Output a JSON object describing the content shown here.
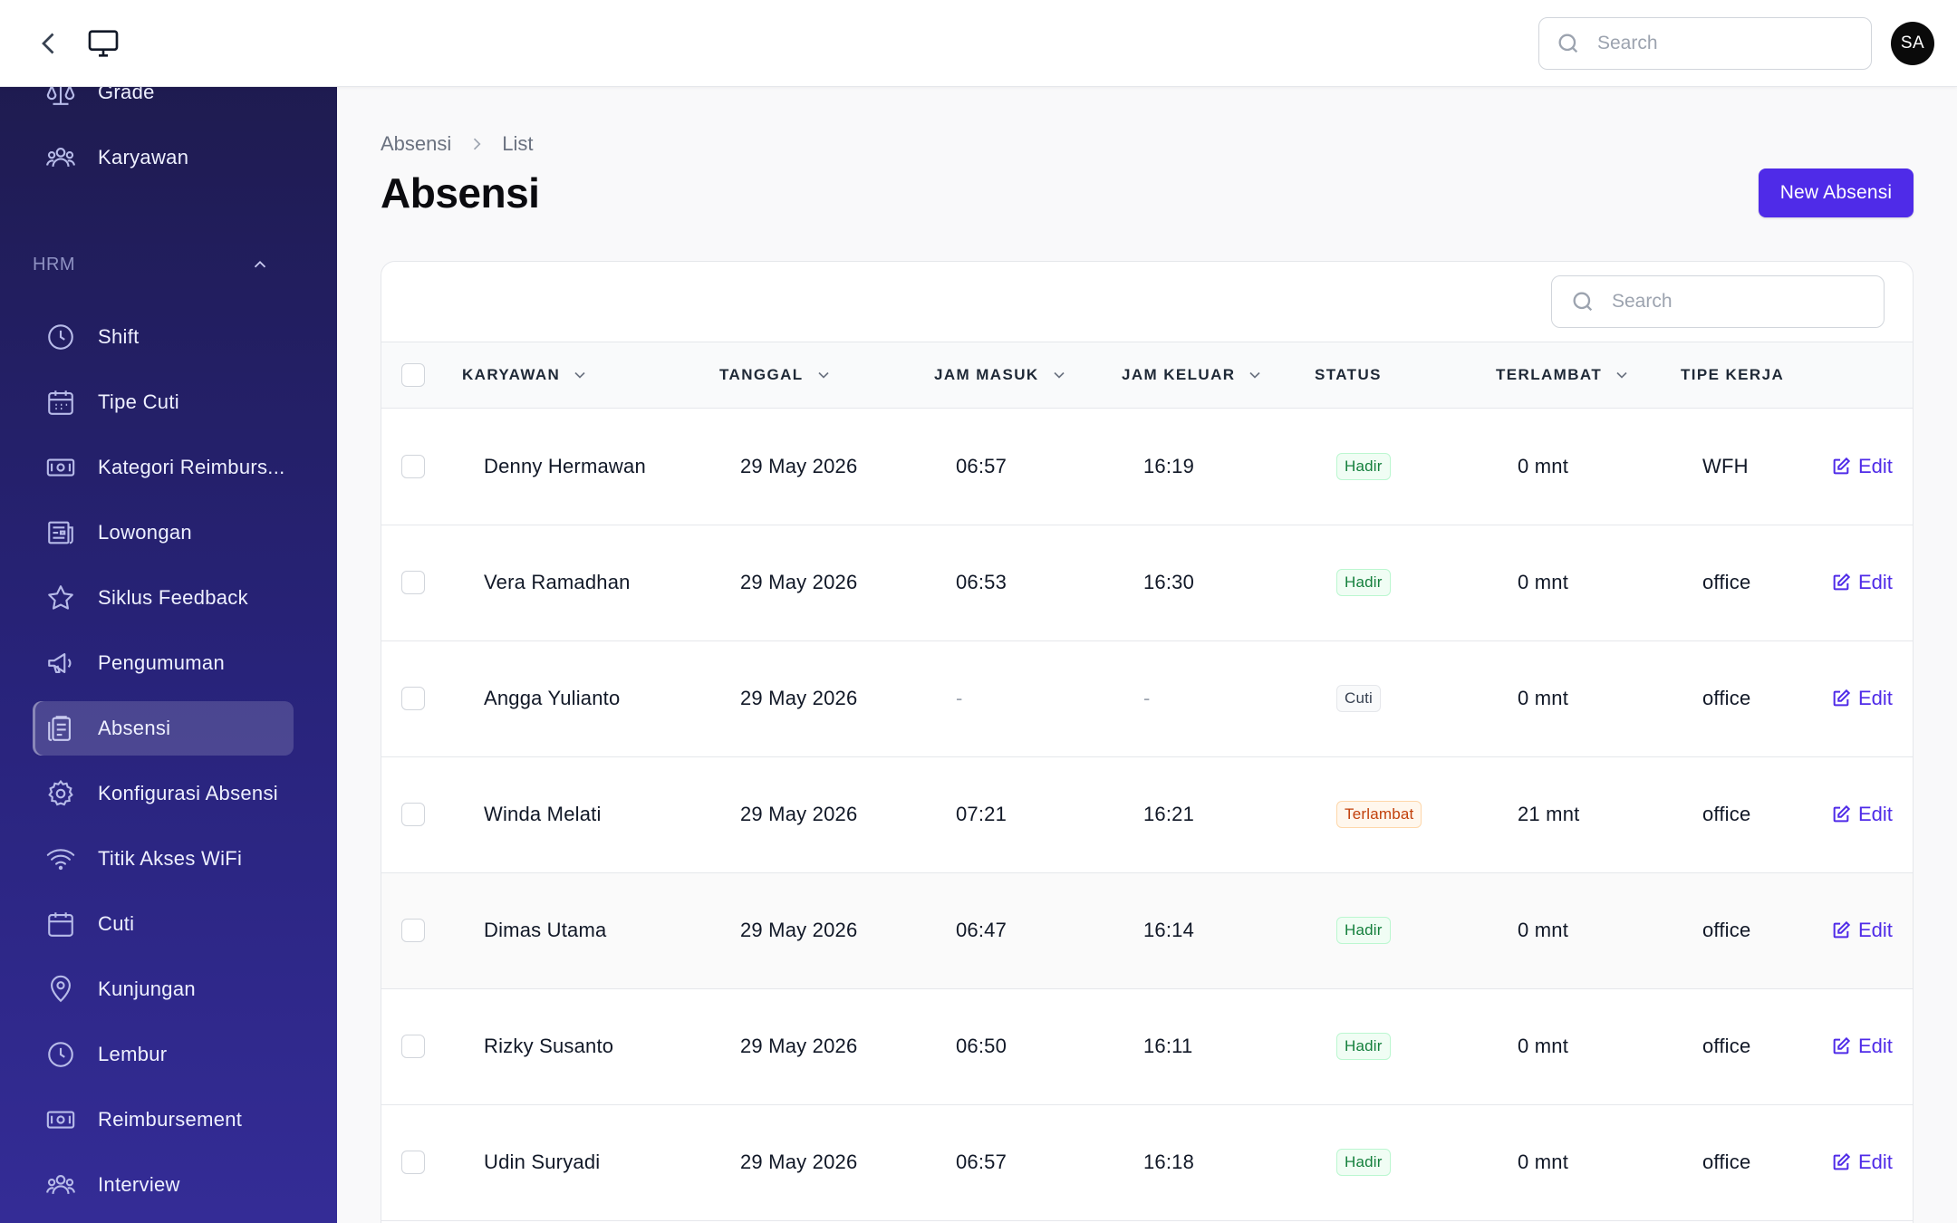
{
  "topbar": {
    "search_placeholder": "Search",
    "avatar_initials": "SA"
  },
  "sidebar": {
    "items_top": [
      {
        "label": "Grade",
        "icon": "scale-icon"
      },
      {
        "label": "Karyawan",
        "icon": "users-icon"
      }
    ],
    "group": {
      "label": "HRM",
      "expanded": true
    },
    "items": [
      {
        "label": "Shift",
        "icon": "clock-icon"
      },
      {
        "label": "Tipe Cuti",
        "icon": "calendar-icon"
      },
      {
        "label": "Kategori Reimburs...",
        "icon": "cash-icon"
      },
      {
        "label": "Lowongan",
        "icon": "newspaper-icon"
      },
      {
        "label": "Siklus Feedback",
        "icon": "star-icon"
      },
      {
        "label": "Pengumuman",
        "icon": "megaphone-icon"
      },
      {
        "label": "Absensi",
        "icon": "clipboard-icon",
        "active": true
      },
      {
        "label": "Konfigurasi Absensi",
        "icon": "gear-icon"
      },
      {
        "label": "Titik Akses WiFi",
        "icon": "wifi-icon"
      },
      {
        "label": "Cuti",
        "icon": "calendar-icon"
      },
      {
        "label": "Kunjungan",
        "icon": "map-pin-icon"
      },
      {
        "label": "Lembur",
        "icon": "clock-icon"
      },
      {
        "label": "Reimbursement",
        "icon": "cash-icon"
      },
      {
        "label": "Interview",
        "icon": "users-icon"
      }
    ]
  },
  "breadcrumb": {
    "parent": "Absensi",
    "current": "List"
  },
  "page": {
    "title": "Absensi",
    "new_button": "New Absensi"
  },
  "table": {
    "search_placeholder": "Search",
    "columns": [
      "KARYAWAN",
      "TANGGAL",
      "JAM MASUK",
      "JAM KELUAR",
      "STATUS",
      "TERLAMBAT",
      "TIPE KERJA"
    ],
    "edit_label": "Edit",
    "rows": [
      {
        "karyawan": "Denny Hermawan",
        "tanggal": "29 May 2026",
        "jam_masuk": "06:57",
        "jam_keluar": "16:19",
        "status": "Hadir",
        "terlambat": "0 mnt",
        "tipe_kerja": "WFH"
      },
      {
        "karyawan": "Vera Ramadhan",
        "tanggal": "29 May 2026",
        "jam_masuk": "06:53",
        "jam_keluar": "16:30",
        "status": "Hadir",
        "terlambat": "0 mnt",
        "tipe_kerja": "office"
      },
      {
        "karyawan": "Angga Yulianto",
        "tanggal": "29 May 2026",
        "jam_masuk": "-",
        "jam_keluar": "-",
        "status": "Cuti",
        "terlambat": "0 mnt",
        "tipe_kerja": "office"
      },
      {
        "karyawan": "Winda Melati",
        "tanggal": "29 May 2026",
        "jam_masuk": "07:21",
        "jam_keluar": "16:21",
        "status": "Terlambat",
        "terlambat": "21 mnt",
        "tipe_kerja": "office"
      },
      {
        "karyawan": "Dimas Utama",
        "tanggal": "29 May 2026",
        "jam_masuk": "06:47",
        "jam_keluar": "16:14",
        "status": "Hadir",
        "terlambat": "0 mnt",
        "tipe_kerja": "office"
      },
      {
        "karyawan": "Rizky Susanto",
        "tanggal": "29 May 2026",
        "jam_masuk": "06:50",
        "jam_keluar": "16:11",
        "status": "Hadir",
        "terlambat": "0 mnt",
        "tipe_kerja": "office"
      },
      {
        "karyawan": "Udin Suryadi",
        "tanggal": "29 May 2026",
        "jam_masuk": "06:57",
        "jam_keluar": "16:18",
        "status": "Hadir",
        "terlambat": "0 mnt",
        "tipe_kerja": "office"
      }
    ]
  },
  "colors": {
    "accent": "#4f2be8",
    "sidebar_top": "#1d1a4a",
    "sidebar_bottom": "#342c96",
    "hadir": "#15803d",
    "terlambat": "#c2410c"
  }
}
